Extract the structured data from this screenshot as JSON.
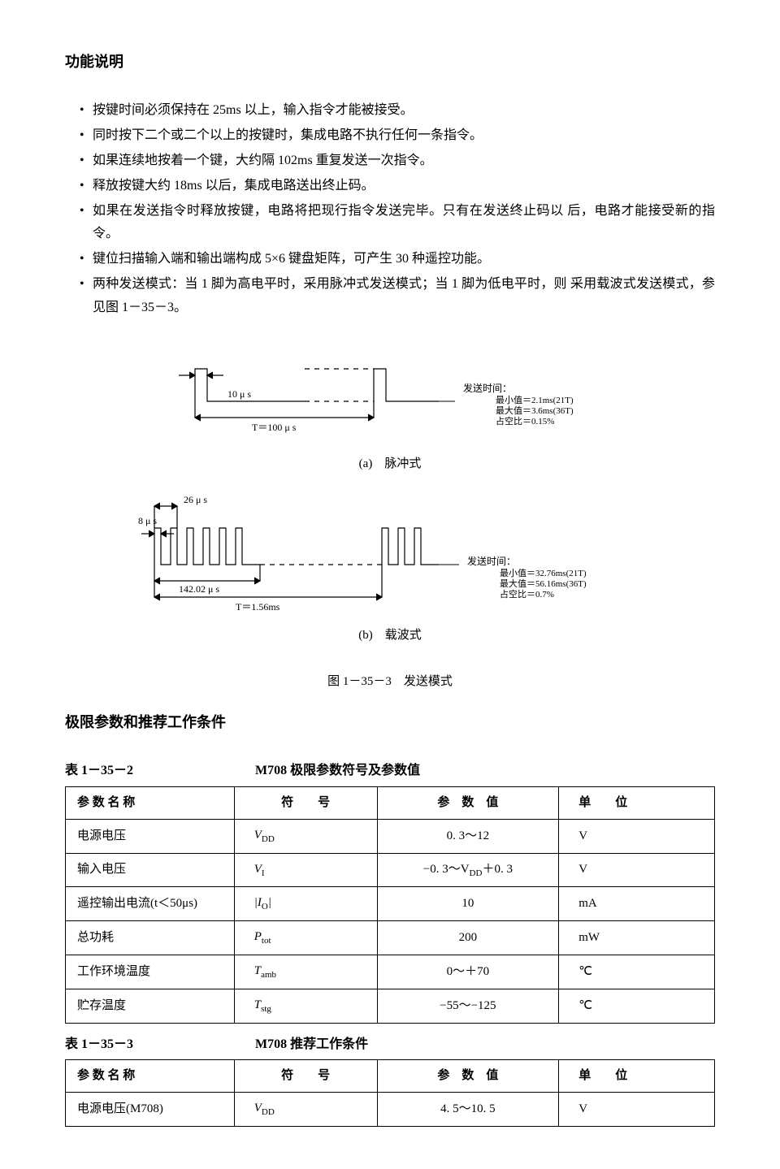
{
  "heading1": "功能说明",
  "bullets": [
    "按键时间必须保持在 25ms 以上，输入指令才能被接受。",
    "同时按下二个或二个以上的按键时，集成电路不执行任何一条指令。",
    "如果连续地按着一个键，大约隔 102ms 重复发送一次指令。",
    "释放按键大约 18ms 以后，集成电路送出终止码。",
    "如果在发送指令时释放按键，电路将把现行指令发送完毕。只有在发送终止码以 后，电路才能接受新的指令。",
    "键位扫描输入端和输出端构成 5×6 键盘矩阵，可产生 30 种遥控功能。",
    "两种发送模式：当 1 脚为高电平时，采用脉冲式发送模式；当 1 脚为低电平时，则 采用载波式发送模式，参见图 1－35－3。"
  ],
  "diagramA": {
    "label_10us": "10 μ s",
    "label_T100": "T＝100 μ s",
    "send_time_title": "发送时间：",
    "min_line": "最小值＝2.1ms(21T)",
    "max_line": "最大值＝3.6ms(36T)",
    "duty_line": "占空比＝0.15%",
    "caption": "(a)　脉冲式"
  },
  "diagramB": {
    "label_8us": "8 μ s",
    "label_26us": "26 μ s",
    "label_142": "142.02 μ s",
    "label_T156": "T＝1.56ms",
    "send_time_title": "发送时间：",
    "min_line": "最小值＝32.76ms(21T)",
    "max_line": "最大值＝56.16ms(36T)",
    "duty_line": "占空比＝0.7%",
    "caption": "(b)　载波式"
  },
  "figure_caption": "图 1－35－3　发送模式",
  "heading2": "极限参数和推荐工作条件",
  "table1": {
    "number": "表 1－35－2",
    "title": "M708 极限参数符号及参数值",
    "headers": [
      "参 数 名 称",
      "符　　号",
      "参　数　值",
      "单　　位"
    ],
    "rows": [
      {
        "name": "电源电压",
        "sym_html": "V<sub>DD</sub>",
        "val": "0. 3～12",
        "unit": "V"
      },
      {
        "name": "输入电压",
        "sym_html": "V<sub>I</sub>",
        "val": "−0. 3～V<sub>DD</sub>＋0. 3",
        "unit": "V"
      },
      {
        "name": "遥控输出电流(t＜50μs)",
        "sym_html": "|I<sub>O</sub>|",
        "val": "10",
        "unit": "mA"
      },
      {
        "name": "总功耗",
        "sym_html": "P<sub>tot</sub>",
        "val": "200",
        "unit": "mW"
      },
      {
        "name": "工作环境温度",
        "sym_html": "T<sub>amb</sub>",
        "val": "0～＋70",
        "unit": "℃"
      },
      {
        "name": "贮存温度",
        "sym_html": "T<sub>stg</sub>",
        "val": "−55～−125",
        "unit": "℃"
      }
    ]
  },
  "table2": {
    "number": "表 1－35－3",
    "title": "M708 推荐工作条件",
    "headers": [
      "参 数 名 称",
      "符　　号",
      "参　数　值",
      "单　　位"
    ],
    "rows": [
      {
        "name": "电源电压(M708)",
        "sym_html": "V<sub>DD</sub>",
        "val": "4. 5～10. 5",
        "unit": "V"
      }
    ]
  },
  "colors": {
    "text": "#000000",
    "bg": "#ffffff",
    "line": "#000000"
  }
}
